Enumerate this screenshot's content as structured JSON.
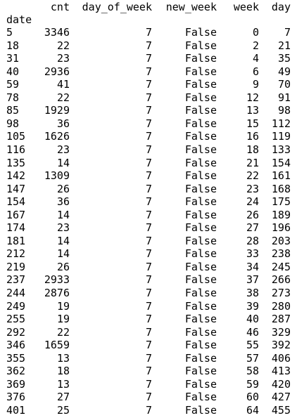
{
  "table": {
    "columns": [
      "cnt",
      "day_of_week",
      "new_week",
      "week",
      "day"
    ],
    "index_name": "date",
    "rows": [
      {
        "date": "5",
        "cnt": "3346",
        "day_of_week": "7",
        "new_week": "False",
        "week": "0",
        "day": "7"
      },
      {
        "date": "18",
        "cnt": "22",
        "day_of_week": "7",
        "new_week": "False",
        "week": "2",
        "day": "21"
      },
      {
        "date": "31",
        "cnt": "23",
        "day_of_week": "7",
        "new_week": "False",
        "week": "4",
        "day": "35"
      },
      {
        "date": "40",
        "cnt": "2936",
        "day_of_week": "7",
        "new_week": "False",
        "week": "6",
        "day": "49"
      },
      {
        "date": "59",
        "cnt": "41",
        "day_of_week": "7",
        "new_week": "False",
        "week": "9",
        "day": "70"
      },
      {
        "date": "78",
        "cnt": "22",
        "day_of_week": "7",
        "new_week": "False",
        "week": "12",
        "day": "91"
      },
      {
        "date": "85",
        "cnt": "1929",
        "day_of_week": "7",
        "new_week": "False",
        "week": "13",
        "day": "98"
      },
      {
        "date": "98",
        "cnt": "36",
        "day_of_week": "7",
        "new_week": "False",
        "week": "15",
        "day": "112"
      },
      {
        "date": "105",
        "cnt": "1626",
        "day_of_week": "7",
        "new_week": "False",
        "week": "16",
        "day": "119"
      },
      {
        "date": "116",
        "cnt": "23",
        "day_of_week": "7",
        "new_week": "False",
        "week": "18",
        "day": "133"
      },
      {
        "date": "135",
        "cnt": "14",
        "day_of_week": "7",
        "new_week": "False",
        "week": "21",
        "day": "154"
      },
      {
        "date": "142",
        "cnt": "1309",
        "day_of_week": "7",
        "new_week": "False",
        "week": "22",
        "day": "161"
      },
      {
        "date": "147",
        "cnt": "26",
        "day_of_week": "7",
        "new_week": "False",
        "week": "23",
        "day": "168"
      },
      {
        "date": "154",
        "cnt": "36",
        "day_of_week": "7",
        "new_week": "False",
        "week": "24",
        "day": "175"
      },
      {
        "date": "167",
        "cnt": "14",
        "day_of_week": "7",
        "new_week": "False",
        "week": "26",
        "day": "189"
      },
      {
        "date": "174",
        "cnt": "23",
        "day_of_week": "7",
        "new_week": "False",
        "week": "27",
        "day": "196"
      },
      {
        "date": "181",
        "cnt": "14",
        "day_of_week": "7",
        "new_week": "False",
        "week": "28",
        "day": "203"
      },
      {
        "date": "212",
        "cnt": "14",
        "day_of_week": "7",
        "new_week": "False",
        "week": "33",
        "day": "238"
      },
      {
        "date": "219",
        "cnt": "26",
        "day_of_week": "7",
        "new_week": "False",
        "week": "34",
        "day": "245"
      },
      {
        "date": "237",
        "cnt": "2933",
        "day_of_week": "7",
        "new_week": "False",
        "week": "37",
        "day": "266"
      },
      {
        "date": "244",
        "cnt": "2876",
        "day_of_week": "7",
        "new_week": "False",
        "week": "38",
        "day": "273"
      },
      {
        "date": "249",
        "cnt": "19",
        "day_of_week": "7",
        "new_week": "False",
        "week": "39",
        "day": "280"
      },
      {
        "date": "255",
        "cnt": "19",
        "day_of_week": "7",
        "new_week": "False",
        "week": "40",
        "day": "287"
      },
      {
        "date": "292",
        "cnt": "22",
        "day_of_week": "7",
        "new_week": "False",
        "week": "46",
        "day": "329"
      },
      {
        "date": "346",
        "cnt": "1659",
        "day_of_week": "7",
        "new_week": "False",
        "week": "55",
        "day": "392"
      },
      {
        "date": "355",
        "cnt": "13",
        "day_of_week": "7",
        "new_week": "False",
        "week": "57",
        "day": "406"
      },
      {
        "date": "362",
        "cnt": "18",
        "day_of_week": "7",
        "new_week": "False",
        "week": "58",
        "day": "413"
      },
      {
        "date": "369",
        "cnt": "13",
        "day_of_week": "7",
        "new_week": "False",
        "week": "59",
        "day": "420"
      },
      {
        "date": "376",
        "cnt": "27",
        "day_of_week": "7",
        "new_week": "False",
        "week": "60",
        "day": "427"
      },
      {
        "date": "401",
        "cnt": "25",
        "day_of_week": "7",
        "new_week": "False",
        "week": "64",
        "day": "455"
      }
    ]
  }
}
